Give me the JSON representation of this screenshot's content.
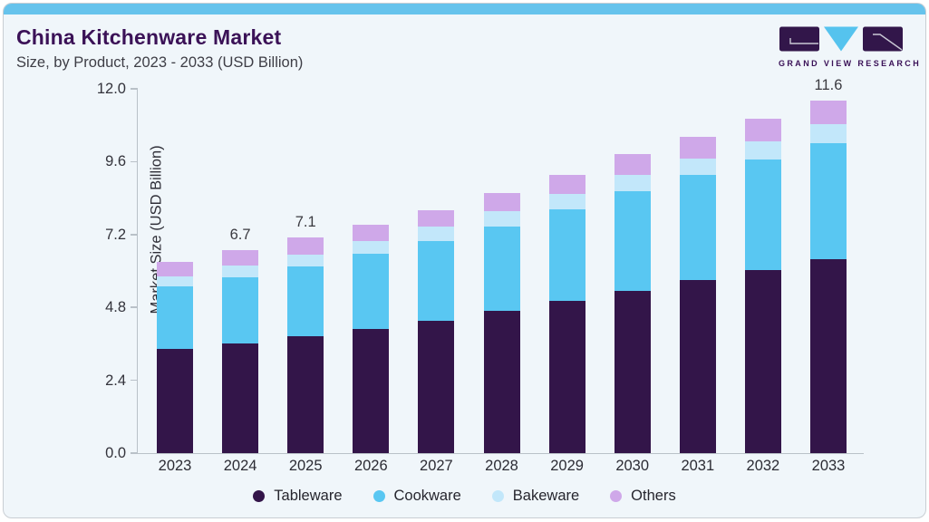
{
  "card": {
    "title": "China Kitchenware Market",
    "subtitle": "Size, by Product, 2023 - 2033 (USD Billion)"
  },
  "logo": {
    "name": "Grand View Research logo",
    "text": "GRAND VIEW RESEARCH",
    "purple": "#32164a",
    "cyan": "#55c3ee"
  },
  "chart_data": {
    "type": "bar",
    "stacked": true,
    "title": "China Kitchenware Market",
    "xlabel": "",
    "ylabel": "Market Size (USD Billion)",
    "ylim": [
      0,
      12.0
    ],
    "yticks": [
      0.0,
      2.4,
      4.8,
      7.2,
      9.6,
      12.0
    ],
    "grid": false,
    "legend_position": "bottom",
    "categories": [
      "2023",
      "2024",
      "2025",
      "2026",
      "2027",
      "2028",
      "2029",
      "2030",
      "2031",
      "2032",
      "2033"
    ],
    "series": [
      {
        "name": "Tableware",
        "color": "#331549",
        "values": [
          3.44,
          3.62,
          3.84,
          4.08,
          4.36,
          4.69,
          5.02,
          5.35,
          5.69,
          6.02,
          6.38
        ]
      },
      {
        "name": "Cookware",
        "color": "#59c7f2",
        "values": [
          2.04,
          2.18,
          2.31,
          2.5,
          2.64,
          2.78,
          3.0,
          3.28,
          3.46,
          3.64,
          3.83
        ]
      },
      {
        "name": "Bakeware",
        "color": "#c2e7fa",
        "values": [
          0.35,
          0.37,
          0.4,
          0.4,
          0.47,
          0.51,
          0.52,
          0.54,
          0.56,
          0.62,
          0.64
        ]
      },
      {
        "name": "Others",
        "color": "#cfa8e9",
        "values": [
          0.48,
          0.53,
          0.55,
          0.53,
          0.53,
          0.58,
          0.64,
          0.69,
          0.71,
          0.75,
          0.77
        ]
      }
    ],
    "bar_value_labels": [
      {
        "category": "2024",
        "text": "6.7"
      },
      {
        "category": "2025",
        "text": "7.1"
      },
      {
        "category": "2033",
        "text": "11.6"
      }
    ]
  },
  "colors": {
    "accent_strip": "#66c3ec",
    "card_background": "#f0f6fa",
    "card_border": "#c9ced3",
    "title_text": "#3b1257",
    "axis_line": "#b9c1c8",
    "axis_text": "#33333b"
  }
}
